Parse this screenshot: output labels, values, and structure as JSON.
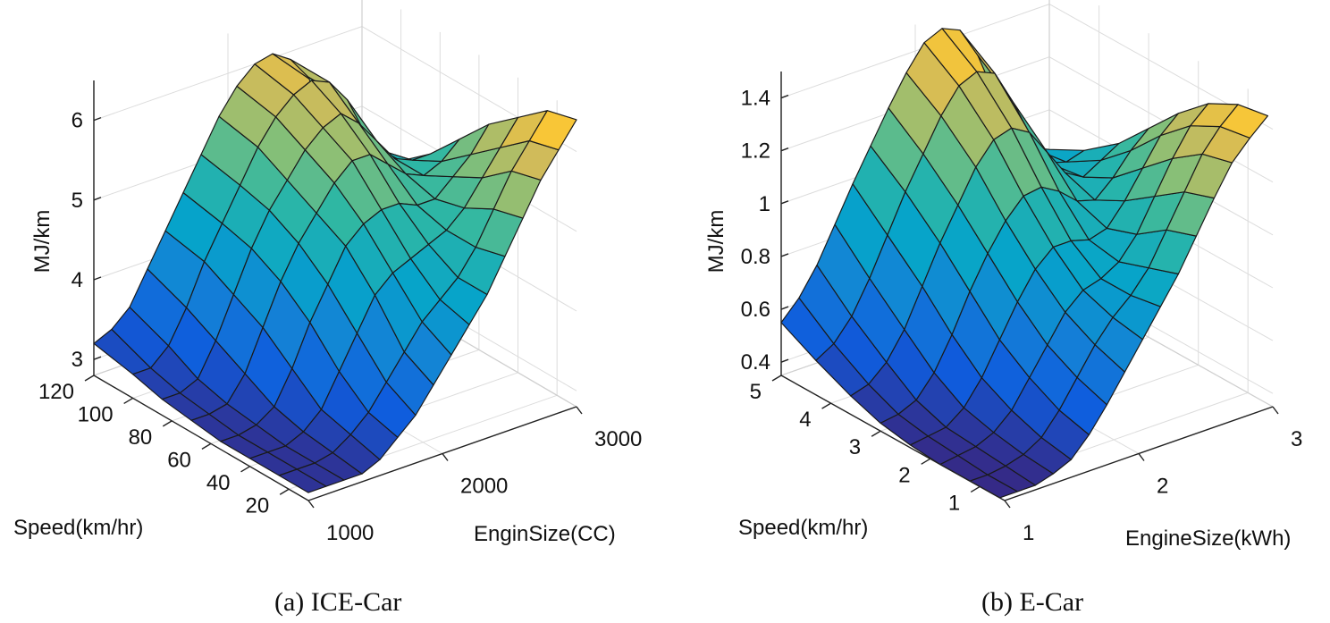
{
  "chart_data": [
    {
      "type": "surface3d",
      "caption": "(a) ICE-Car",
      "xlabel": "EnginSize(CC)",
      "ylabel": "Speed(km/hr)",
      "zlabel": "MJ/km",
      "x_ticks": [
        "1000",
        "2000",
        "3000"
      ],
      "y_ticks": [
        "20",
        "40",
        "60",
        "80",
        "100",
        "120"
      ],
      "z_ticks": [
        "3",
        "4",
        "5",
        "6"
      ],
      "xlim": [
        1000,
        3000
      ],
      "ylim": [
        10,
        120
      ],
      "zlim": [
        2.8,
        6.5
      ],
      "grid": true,
      "surface": [
        {
          "y": 120,
          "z": [
            3.2,
            3.3,
            3.5,
            3.9,
            4.3,
            4.7,
            5.1,
            5.5,
            5.8,
            6.0,
            6.05,
            5.9,
            5.6,
            5.0,
            4.6,
            4.4
          ]
        },
        {
          "y": 100,
          "z": [
            3.1,
            3.1,
            3.3,
            3.7,
            4.2,
            4.6,
            5.0,
            5.4,
            5.7,
            5.9,
            6.0,
            5.9,
            5.6,
            5.1,
            4.8,
            4.6
          ]
        },
        {
          "y": 85,
          "z": [
            3.0,
            3.0,
            3.1,
            3.5,
            4.0,
            4.5,
            4.9,
            5.2,
            5.5,
            5.7,
            5.8,
            5.6,
            5.3,
            5.0,
            4.9,
            4.9
          ]
        },
        {
          "y": 70,
          "z": [
            2.95,
            2.95,
            3.0,
            3.3,
            3.8,
            4.3,
            4.7,
            5.0,
            5.3,
            5.5,
            5.5,
            5.3,
            5.1,
            5.0,
            5.1,
            5.3
          ]
        },
        {
          "y": 55,
          "z": [
            2.9,
            2.9,
            2.95,
            3.1,
            3.5,
            4.0,
            4.4,
            4.8,
            5.0,
            5.1,
            5.1,
            5.0,
            5.0,
            5.2,
            5.4,
            5.7
          ]
        },
        {
          "y": 40,
          "z": [
            2.9,
            2.9,
            2.9,
            3.0,
            3.2,
            3.6,
            4.0,
            4.4,
            4.6,
            4.7,
            4.8,
            4.9,
            5.1,
            5.4,
            5.7,
            6.0
          ]
        },
        {
          "y": 25,
          "z": [
            2.9,
            2.9,
            2.9,
            2.95,
            3.1,
            3.3,
            3.6,
            3.9,
            4.2,
            4.4,
            4.6,
            4.9,
            5.3,
            5.7,
            6.0,
            6.3
          ]
        },
        {
          "y": 10,
          "z": [
            2.9,
            2.9,
            2.9,
            2.9,
            3.0,
            3.2,
            3.4,
            3.7,
            4.0,
            4.3,
            4.6,
            5.0,
            5.4,
            5.8,
            6.1,
            6.4
          ]
        }
      ]
    },
    {
      "type": "surface3d",
      "caption": "(b) E-Car",
      "xlabel": "EngineSize(kWh)",
      "ylabel": "Speed(km/hr)",
      "zlabel": "MJ/km",
      "x_ticks": [
        "1",
        "2",
        "3"
      ],
      "y_ticks": [
        "1",
        "2",
        "3",
        "4",
        "5"
      ],
      "z_ticks": [
        "0.4",
        "0.6",
        "0.8",
        "1",
        "1.2",
        "1.4"
      ],
      "xlim": [
        1,
        3
      ],
      "ylim": [
        0.5,
        5
      ],
      "zlim": [
        0.35,
        1.5
      ],
      "grid": true,
      "surface": [
        {
          "y": 5,
          "z": [
            0.55,
            0.62,
            0.72,
            0.85,
            0.98,
            1.1,
            1.22,
            1.33,
            1.42,
            1.45,
            1.42,
            1.3,
            1.12,
            0.95,
            0.88,
            0.85
          ]
        },
        {
          "y": 4.3,
          "z": [
            0.48,
            0.52,
            0.6,
            0.72,
            0.86,
            1.0,
            1.12,
            1.24,
            1.33,
            1.36,
            1.33,
            1.2,
            1.05,
            0.92,
            0.9,
            0.92
          ]
        },
        {
          "y": 3.6,
          "z": [
            0.42,
            0.44,
            0.5,
            0.6,
            0.74,
            0.88,
            1.0,
            1.12,
            1.2,
            1.22,
            1.18,
            1.08,
            0.98,
            0.94,
            0.98,
            1.02
          ]
        },
        {
          "y": 3.0,
          "z": [
            0.38,
            0.39,
            0.42,
            0.5,
            0.62,
            0.76,
            0.88,
            0.98,
            1.05,
            1.06,
            1.02,
            0.96,
            0.94,
            1.0,
            1.08,
            1.14
          ]
        },
        {
          "y": 2.4,
          "z": [
            0.36,
            0.37,
            0.38,
            0.43,
            0.52,
            0.64,
            0.76,
            0.86,
            0.92,
            0.92,
            0.9,
            0.92,
            1.0,
            1.1,
            1.2,
            1.26
          ]
        },
        {
          "y": 1.8,
          "z": [
            0.35,
            0.36,
            0.37,
            0.4,
            0.46,
            0.56,
            0.66,
            0.76,
            0.82,
            0.84,
            0.88,
            0.96,
            1.08,
            1.2,
            1.3,
            1.36
          ]
        },
        {
          "y": 1.2,
          "z": [
            0.35,
            0.35,
            0.36,
            0.38,
            0.42,
            0.5,
            0.6,
            0.7,
            0.78,
            0.84,
            0.92,
            1.04,
            1.16,
            1.28,
            1.36,
            1.42
          ]
        },
        {
          "y": 0.6,
          "z": [
            0.35,
            0.35,
            0.35,
            0.37,
            0.4,
            0.47,
            0.56,
            0.66,
            0.76,
            0.86,
            0.96,
            1.08,
            1.2,
            1.31,
            1.38,
            1.44
          ]
        }
      ]
    }
  ]
}
